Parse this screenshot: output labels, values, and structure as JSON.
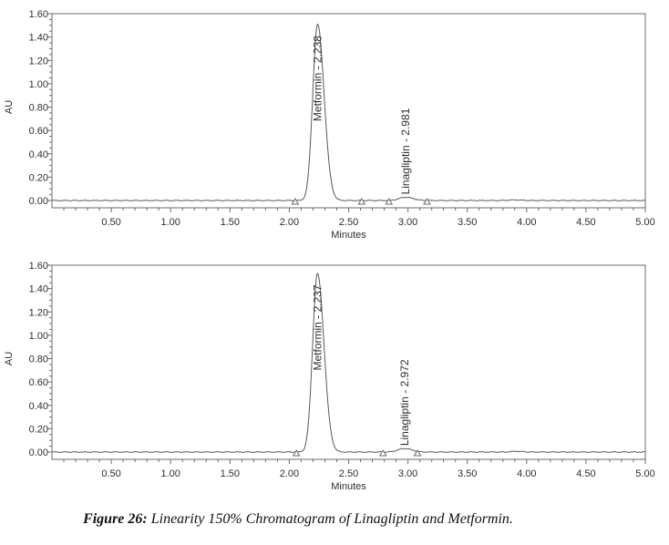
{
  "figure": {
    "caption_prefix": "Figure 26:",
    "caption_text": " Linearity 150% Chromatogram of Linagliptin and Metformin."
  },
  "colors": {
    "trace": "#595959",
    "axis": "#6b6b6b",
    "tick_text": "#2e2e2e",
    "peak_label_text": "#1f1f1f",
    "marker_fill": "#ffffff",
    "background": "#ffffff"
  },
  "chart_data": [
    {
      "type": "line",
      "id": "top",
      "title": "",
      "xlabel": "Minutes",
      "ylabel": "AU",
      "xlim": [
        0.0,
        5.0
      ],
      "ylim": [
        -0.06,
        1.6
      ],
      "grid": false,
      "legend": "none",
      "x_major_tick_step": 0.5,
      "x_minor_tick_step": 0.1,
      "y_major_tick_step": 0.2,
      "y_minor_tick_step": 0.05,
      "x_tick_labels": [
        "0.50",
        "1.00",
        "1.50",
        "2.00",
        "2.50",
        "3.00",
        "3.50",
        "4.00",
        "4.50",
        "5.00"
      ],
      "y_tick_labels": [
        "0.00",
        "0.20",
        "0.40",
        "0.60",
        "0.80",
        "1.00",
        "1.20",
        "1.40",
        "1.60"
      ],
      "peaks": [
        {
          "name": "Metformin",
          "retention_time_min": 2.238,
          "label": "Metformin - 2.238",
          "height_au": 1.51,
          "sigma_left_min": 0.04,
          "sigma_right_min": 0.055
        },
        {
          "name": "Linagliptin",
          "retention_time_min": 2.981,
          "label": "Linagliptin - 2.981",
          "height_au": 0.028,
          "sigma_left_min": 0.055,
          "sigma_right_min": 0.062
        }
      ],
      "integration_markers_min": [
        2.05,
        2.61,
        2.84,
        3.16
      ],
      "baseline_artifacts": [
        {
          "x_min": 3.9,
          "height_au": 0.005,
          "sigma_min": 0.05
        }
      ]
    },
    {
      "type": "line",
      "id": "bottom",
      "title": "",
      "xlabel": "Minutes",
      "ylabel": "AU",
      "xlim": [
        0.0,
        5.0
      ],
      "ylim": [
        -0.06,
        1.6
      ],
      "grid": false,
      "legend": "none",
      "x_major_tick_step": 0.5,
      "x_minor_tick_step": 0.1,
      "y_major_tick_step": 0.2,
      "y_minor_tick_step": 0.05,
      "x_tick_labels": [
        "0.50",
        "1.00",
        "1.50",
        "2.00",
        "2.50",
        "3.00",
        "3.50",
        "4.00",
        "4.50",
        "5.00"
      ],
      "y_tick_labels": [
        "0.00",
        "0.20",
        "0.40",
        "0.60",
        "0.80",
        "1.00",
        "1.20",
        "1.40",
        "1.60"
      ],
      "peaks": [
        {
          "name": "Metformin",
          "retention_time_min": 2.237,
          "label": "Metformin - 2.237",
          "height_au": 1.53,
          "sigma_left_min": 0.04,
          "sigma_right_min": 0.055
        },
        {
          "name": "Linagliptin",
          "retention_time_min": 2.972,
          "label": "Linagliptin - 2.972",
          "height_au": 0.03,
          "sigma_left_min": 0.055,
          "sigma_right_min": 0.062
        }
      ],
      "integration_markers_min": [
        2.06,
        2.79,
        3.08
      ],
      "baseline_artifacts": [
        {
          "x_min": 3.92,
          "height_au": 0.006,
          "sigma_min": 0.05
        }
      ]
    }
  ]
}
